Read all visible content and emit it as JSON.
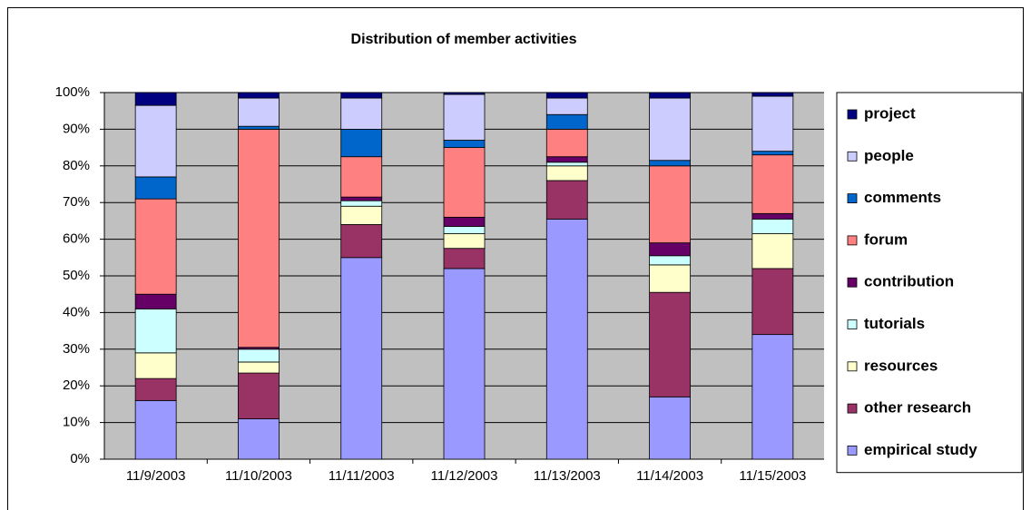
{
  "chart_data": {
    "type": "stacked_bar",
    "title": "Distribution of member activities",
    "categories": [
      "11/9/2003",
      "11/10/2003",
      "11/11/2003",
      "11/12/2003",
      "11/13/2003",
      "11/14/2003",
      "11/15/2003"
    ],
    "series": [
      {
        "name": "empirical study",
        "color": "#9999ff",
        "values": [
          16,
          11,
          55,
          52,
          65.5,
          17,
          34
        ]
      },
      {
        "name": "other research",
        "color": "#993366",
        "values": [
          6,
          12.5,
          9,
          5.5,
          10.5,
          28.5,
          18
        ]
      },
      {
        "name": "resources",
        "color": "#ffffcc",
        "values": [
          7,
          3,
          5,
          4,
          4,
          7.5,
          9.5
        ]
      },
      {
        "name": "tutorials",
        "color": "#ccffff",
        "values": [
          12,
          3.5,
          1.5,
          2,
          1,
          2.5,
          4
        ]
      },
      {
        "name": "contribution",
        "color": "#660066",
        "values": [
          4,
          0.5,
          1,
          2.5,
          1.5,
          3.5,
          1.5
        ]
      },
      {
        "name": "forum",
        "color": "#ff8080",
        "values": [
          26,
          59.5,
          11,
          19,
          7.5,
          21,
          16
        ]
      },
      {
        "name": "comments",
        "color": "#0066cc",
        "values": [
          6,
          0.8,
          7.5,
          2,
          4,
          1.5,
          1
        ]
      },
      {
        "name": "people",
        "color": "#ccccff",
        "values": [
          19.5,
          7.7,
          8.5,
          12.5,
          4.5,
          17,
          15
        ]
      },
      {
        "name": "project",
        "color": "#000080",
        "values": [
          3.5,
          1.5,
          1.5,
          0.5,
          1.5,
          1.5,
          1
        ]
      }
    ],
    "ylim": [
      0,
      100
    ],
    "yticks": [
      {
        "value": 0,
        "label": "0%"
      },
      {
        "value": 10,
        "label": "10%"
      },
      {
        "value": 20,
        "label": "20%"
      },
      {
        "value": 30,
        "label": "30%"
      },
      {
        "value": 40,
        "label": "40%"
      },
      {
        "value": 50,
        "label": "50%"
      },
      {
        "value": 60,
        "label": "60%"
      },
      {
        "value": 70,
        "label": "70%"
      },
      {
        "value": 80,
        "label": "80%"
      },
      {
        "value": 90,
        "label": "90%"
      },
      {
        "value": 100,
        "label": "100%"
      }
    ],
    "grid": true,
    "legend": "right"
  }
}
